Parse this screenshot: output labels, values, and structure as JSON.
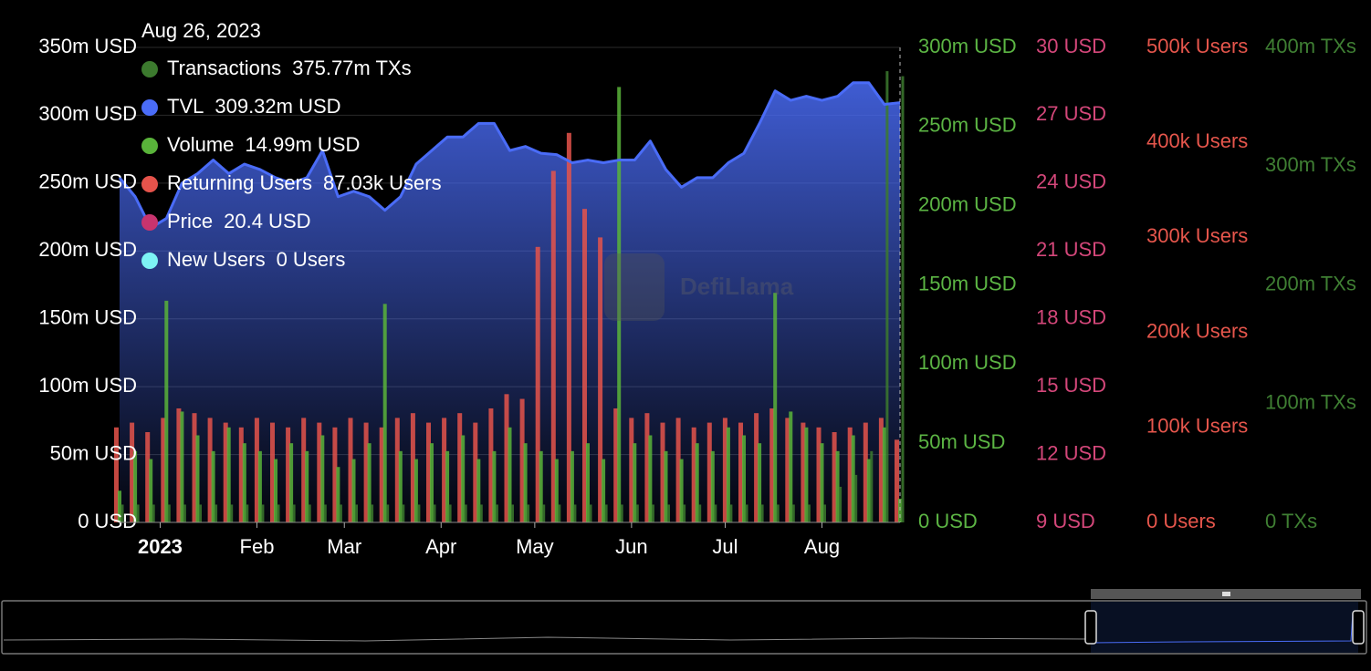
{
  "chart_data": {
    "type": "bar",
    "tooltip_title": "Aug 26, 2023",
    "watermark": "DefiLlama",
    "x": [
      "2022-12-19",
      "2022-12-24",
      "2022-12-29",
      "2023-01-03",
      "2023-01-08",
      "2023-01-13",
      "2023-01-18",
      "2023-01-23",
      "2023-01-28",
      "2023-02-02",
      "2023-02-07",
      "2023-02-12",
      "2023-02-17",
      "2023-02-22",
      "2023-02-27",
      "2023-03-04",
      "2023-03-09",
      "2023-03-14",
      "2023-03-19",
      "2023-03-24",
      "2023-03-29",
      "2023-04-03",
      "2023-04-08",
      "2023-04-13",
      "2023-04-18",
      "2023-04-23",
      "2023-04-28",
      "2023-05-03",
      "2023-05-08",
      "2023-05-13",
      "2023-05-18",
      "2023-05-23",
      "2023-05-28",
      "2023-06-02",
      "2023-06-07",
      "2023-06-12",
      "2023-06-17",
      "2023-06-22",
      "2023-06-27",
      "2023-07-02",
      "2023-07-07",
      "2023-07-12",
      "2023-07-17",
      "2023-07-22",
      "2023-07-27",
      "2023-08-01",
      "2023-08-06",
      "2023-08-11",
      "2023-08-16",
      "2023-08-21",
      "2023-08-26"
    ],
    "xticks": [
      {
        "value": "2023-01-01",
        "label": "2023"
      },
      {
        "value": "2023-02-01",
        "label": "Feb"
      },
      {
        "value": "2023-03-01",
        "label": "Mar"
      },
      {
        "value": "2023-04-01",
        "label": "Apr"
      },
      {
        "value": "2023-05-01",
        "label": "May"
      },
      {
        "value": "2023-06-01",
        "label": "Jun"
      },
      {
        "value": "2023-07-01",
        "label": "Jul"
      },
      {
        "value": "2023-08-01",
        "label": "Aug"
      }
    ],
    "ylim": [
      0,
      350
    ],
    "yticks": [
      {
        "value": 0,
        "label": "0 USD"
      },
      {
        "value": 50,
        "label": "50m USD"
      },
      {
        "value": 100,
        "label": "100m USD"
      },
      {
        "value": 150,
        "label": "150m USD"
      },
      {
        "value": 200,
        "label": "200m USD"
      },
      {
        "value": 250,
        "label": "250m USD"
      },
      {
        "value": 300,
        "label": "300m USD"
      },
      {
        "value": 350,
        "label": "350m USD"
      }
    ],
    "y2lim": [
      0,
      300
    ],
    "y2ticks": [
      {
        "value": 0,
        "label": "0 USD"
      },
      {
        "value": 50,
        "label": "50m USD"
      },
      {
        "value": 100,
        "label": "100m USD"
      },
      {
        "value": 150,
        "label": "150m USD"
      },
      {
        "value": 200,
        "label": "200m USD"
      },
      {
        "value": 250,
        "label": "250m USD"
      },
      {
        "value": 300,
        "label": "300m USD"
      }
    ],
    "y3lim": [
      9,
      30
    ],
    "y3ticks": [
      {
        "value": 9,
        "label": "9 USD"
      },
      {
        "value": 12,
        "label": "12 USD"
      },
      {
        "value": 15,
        "label": "15 USD"
      },
      {
        "value": 18,
        "label": "18 USD"
      },
      {
        "value": 21,
        "label": "21 USD"
      },
      {
        "value": 24,
        "label": "24 USD"
      },
      {
        "value": 27,
        "label": "27 USD"
      },
      {
        "value": 30,
        "label": "30 USD"
      }
    ],
    "y4lim": [
      0,
      500
    ],
    "y4ticks": [
      {
        "value": 0,
        "label": "0 Users"
      },
      {
        "value": 100,
        "label": "100k Users"
      },
      {
        "value": 200,
        "label": "200k Users"
      },
      {
        "value": 300,
        "label": "300k Users"
      },
      {
        "value": 400,
        "label": "400k Users"
      },
      {
        "value": 500,
        "label": "500k Users"
      }
    ],
    "y5lim": [
      0,
      400
    ],
    "y5ticks": [
      {
        "value": 0,
        "label": "0 TXs"
      },
      {
        "value": 100,
        "label": "100m TXs"
      },
      {
        "value": 200,
        "label": "200m TXs"
      },
      {
        "value": 300,
        "label": "300m TXs"
      },
      {
        "value": 400,
        "label": "400m TXs"
      }
    ],
    "grid": true,
    "series": [
      {
        "name": "Transactions",
        "color": "#3c7a2e",
        "axis": "y5",
        "type": "bar",
        "tooltip_label": "375.77m TXs",
        "values": [
          15,
          15,
          15,
          15,
          15,
          15,
          15,
          15,
          15,
          15,
          15,
          15,
          15,
          15,
          15,
          15,
          15,
          15,
          15,
          15,
          15,
          15,
          15,
          15,
          15,
          15,
          15,
          15,
          15,
          15,
          15,
          15,
          15,
          15,
          15,
          15,
          15,
          15,
          15,
          15,
          15,
          15,
          15,
          15,
          15,
          15,
          30,
          40,
          60,
          380,
          375.77
        ]
      },
      {
        "name": "TVL",
        "color": "#4a6cf7",
        "axis": "y",
        "type": "line",
        "tooltip_label": "309.32m USD",
        "values": [
          254,
          240,
          217,
          224,
          250,
          257,
          267,
          257,
          264,
          260,
          254,
          250,
          254,
          274,
          240,
          244,
          240,
          230,
          240,
          264,
          274,
          284,
          284,
          294,
          294,
          274,
          277,
          272,
          271,
          265,
          267,
          265,
          267,
          267,
          281,
          260,
          247,
          254,
          254,
          265,
          272,
          294,
          318,
          311,
          314,
          311,
          314,
          324,
          324,
          308,
          309.32
        ]
      },
      {
        "name": "Volume",
        "color": "#59b33a",
        "axis": "y2",
        "type": "bar",
        "tooltip_label": "14.99m USD",
        "values": [
          20,
          45,
          40,
          140,
          70,
          55,
          45,
          60,
          50,
          45,
          40,
          50,
          45,
          55,
          35,
          40,
          50,
          138,
          45,
          40,
          50,
          45,
          55,
          40,
          45,
          60,
          50,
          45,
          40,
          45,
          50,
          40,
          275,
          50,
          55,
          45,
          40,
          50,
          45,
          60,
          55,
          50,
          145,
          70,
          60,
          50,
          45,
          55,
          40,
          60,
          14.99
        ]
      },
      {
        "name": "Returning Users",
        "color": "#e5534b",
        "axis": "y4",
        "type": "bar",
        "tooltip_label": "87.03k Users",
        "values": [
          100,
          105,
          95,
          110,
          120,
          115,
          110,
          105,
          100,
          110,
          105,
          100,
          110,
          105,
          100,
          110,
          105,
          100,
          110,
          115,
          105,
          110,
          115,
          105,
          120,
          135,
          130,
          290,
          370,
          410,
          330,
          300,
          120,
          110,
          115,
          105,
          110,
          100,
          105,
          110,
          105,
          115,
          120,
          110,
          105,
          100,
          95,
          100,
          105,
          110,
          87.03
        ]
      },
      {
        "name": "Price",
        "color": "#c8346e",
        "axis": "y3",
        "tooltip_label": "20.4 USD"
      },
      {
        "name": "New Users",
        "color": "#7df3f5",
        "axis": "y4",
        "tooltip_label": "0 Users"
      }
    ]
  }
}
